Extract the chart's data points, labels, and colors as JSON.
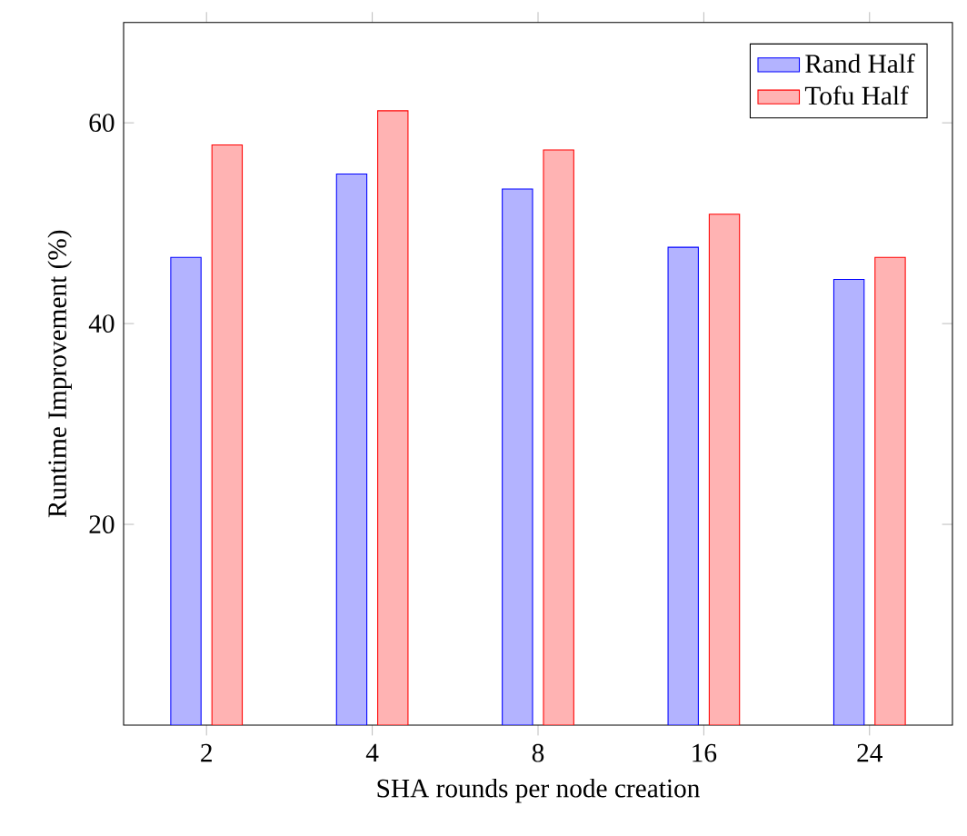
{
  "chart_data": {
    "type": "bar",
    "xlabel": "SHA rounds per node creation",
    "ylabel": "Runtime Improvement (%)",
    "categories": [
      "2",
      "4",
      "8",
      "16",
      "24"
    ],
    "series": [
      {
        "name": "Rand Half",
        "color": "#b3b3ff",
        "values": [
          46.6,
          54.9,
          53.4,
          47.6,
          44.4
        ]
      },
      {
        "name": "Tofu Half",
        "color": "#ffb3b3",
        "values": [
          57.8,
          61.2,
          57.3,
          50.9,
          46.6
        ]
      }
    ],
    "ylim": [
      0,
      70
    ],
    "yticks": [
      20,
      40,
      60
    ],
    "legend": "top right",
    "grid": false
  }
}
